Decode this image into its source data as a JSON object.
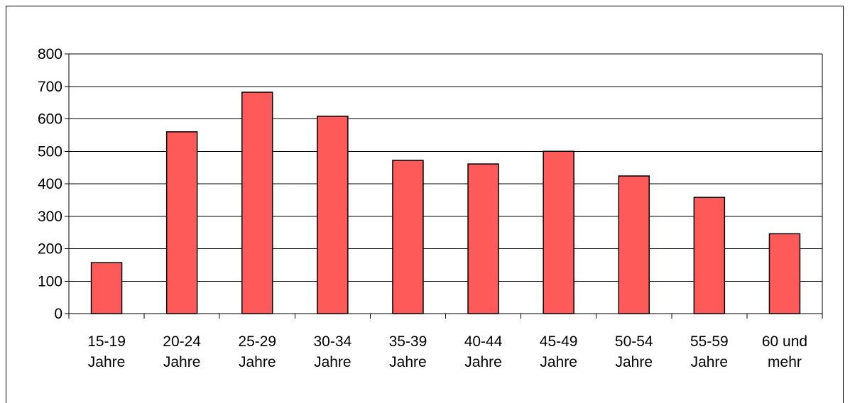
{
  "chart_data": {
    "type": "bar",
    "title": "",
    "xlabel": "",
    "ylabel": "",
    "categories": [
      [
        "15-19",
        "Jahre"
      ],
      [
        "20-24",
        "Jahre"
      ],
      [
        "25-29",
        "Jahre"
      ],
      [
        "30-34",
        "Jahre"
      ],
      [
        "35-39",
        "Jahre"
      ],
      [
        "40-44",
        "Jahre"
      ],
      [
        "45-49",
        "Jahre"
      ],
      [
        "50-54",
        "Jahre"
      ],
      [
        "55-59",
        "Jahre"
      ],
      [
        "60 und",
        "mehr"
      ]
    ],
    "values": [
      157,
      560,
      682,
      608,
      472,
      461,
      500,
      424,
      358,
      246
    ],
    "ylim": [
      0,
      800
    ],
    "yticks": [
      "0",
      "100",
      "200",
      "300",
      "400",
      "500",
      "600",
      "700",
      "800"
    ],
    "grid": true,
    "legend": "none",
    "colors": {
      "bar_fill": "#ff5a5a",
      "bar_stroke": "#000000",
      "grid": "#000000"
    }
  }
}
